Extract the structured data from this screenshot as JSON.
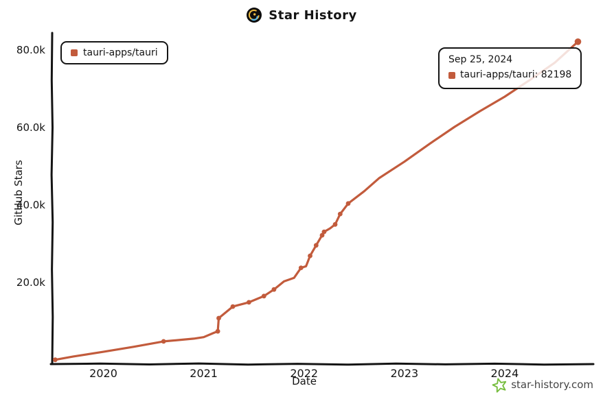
{
  "header": {
    "title": "Star History"
  },
  "legend": {
    "items": [
      {
        "label": "tauri-apps/tauri",
        "color": "#C25B3C"
      }
    ]
  },
  "tooltip": {
    "date": "Sep 25, 2024",
    "series_text": "tauri-apps/tauri: 82198",
    "marker_color": "#C25B3C"
  },
  "watermark": {
    "text": "star-history.com",
    "star_color": "#76BD3E"
  },
  "chart_data": {
    "type": "line",
    "title": "Star History",
    "xlabel": "Date",
    "ylabel": "GitHub Stars",
    "grid": false,
    "legend_position": "top-left",
    "axis_color": "#141414",
    "x_range": [
      2019.5,
      2024.87
    ],
    "y_range": [
      0,
      84000
    ],
    "x_ticks": [
      {
        "label": "2020",
        "value": 2020
      },
      {
        "label": "2021",
        "value": 2021
      },
      {
        "label": "2022",
        "value": 2022
      },
      {
        "label": "2023",
        "value": 2023
      },
      {
        "label": "2024",
        "value": 2024
      }
    ],
    "y_ticks": [
      {
        "label": "20.0k",
        "value": 20000
      },
      {
        "label": "40.0k",
        "value": 40000
      },
      {
        "label": "60.0k",
        "value": 60000
      },
      {
        "label": "80.0k",
        "value": 80000
      }
    ],
    "series": [
      {
        "name": "tauri-apps/tauri",
        "color": "#C25B3C",
        "points": [
          [
            2019.52,
            50
          ],
          [
            2019.7,
            900
          ],
          [
            2020.0,
            2100
          ],
          [
            2020.3,
            3400
          ],
          [
            2020.6,
            4800
          ],
          [
            2020.9,
            5500
          ],
          [
            2021.0,
            5900
          ],
          [
            2021.1,
            7000
          ],
          [
            2021.14,
            7400
          ],
          [
            2021.15,
            10800
          ],
          [
            2021.29,
            13800
          ],
          [
            2021.45,
            14900
          ],
          [
            2021.6,
            16500
          ],
          [
            2021.7,
            18200
          ],
          [
            2021.8,
            20300
          ],
          [
            2021.9,
            21200
          ],
          [
            2021.97,
            23800
          ],
          [
            2022.02,
            24200
          ],
          [
            2022.06,
            26900
          ],
          [
            2022.12,
            29600
          ],
          [
            2022.18,
            32200
          ],
          [
            2022.2,
            33100
          ],
          [
            2022.26,
            34000
          ],
          [
            2022.31,
            35000
          ],
          [
            2022.36,
            37700
          ],
          [
            2022.44,
            40400
          ],
          [
            2022.6,
            43600
          ],
          [
            2022.75,
            47000
          ],
          [
            2023.0,
            51200
          ],
          [
            2023.25,
            55800
          ],
          [
            2023.5,
            60200
          ],
          [
            2023.75,
            64200
          ],
          [
            2024.0,
            68000
          ],
          [
            2024.25,
            72300
          ],
          [
            2024.5,
            76800
          ],
          [
            2024.73,
            82198
          ]
        ],
        "marker_points": [
          [
            2019.52,
            50
          ],
          [
            2020.6,
            4800
          ],
          [
            2021.14,
            7400
          ],
          [
            2021.15,
            10800
          ],
          [
            2021.29,
            13800
          ],
          [
            2021.45,
            14900
          ],
          [
            2021.6,
            16500
          ],
          [
            2021.7,
            18200
          ],
          [
            2021.97,
            23800
          ],
          [
            2022.06,
            26900
          ],
          [
            2022.12,
            29600
          ],
          [
            2022.18,
            32200
          ],
          [
            2022.2,
            33100
          ],
          [
            2022.31,
            35000
          ],
          [
            2022.36,
            37700
          ],
          [
            2022.44,
            40400
          ]
        ],
        "end_point": [
          2024.73,
          82198
        ],
        "end_value": 82198,
        "end_date": "Sep 25, 2024"
      }
    ]
  }
}
